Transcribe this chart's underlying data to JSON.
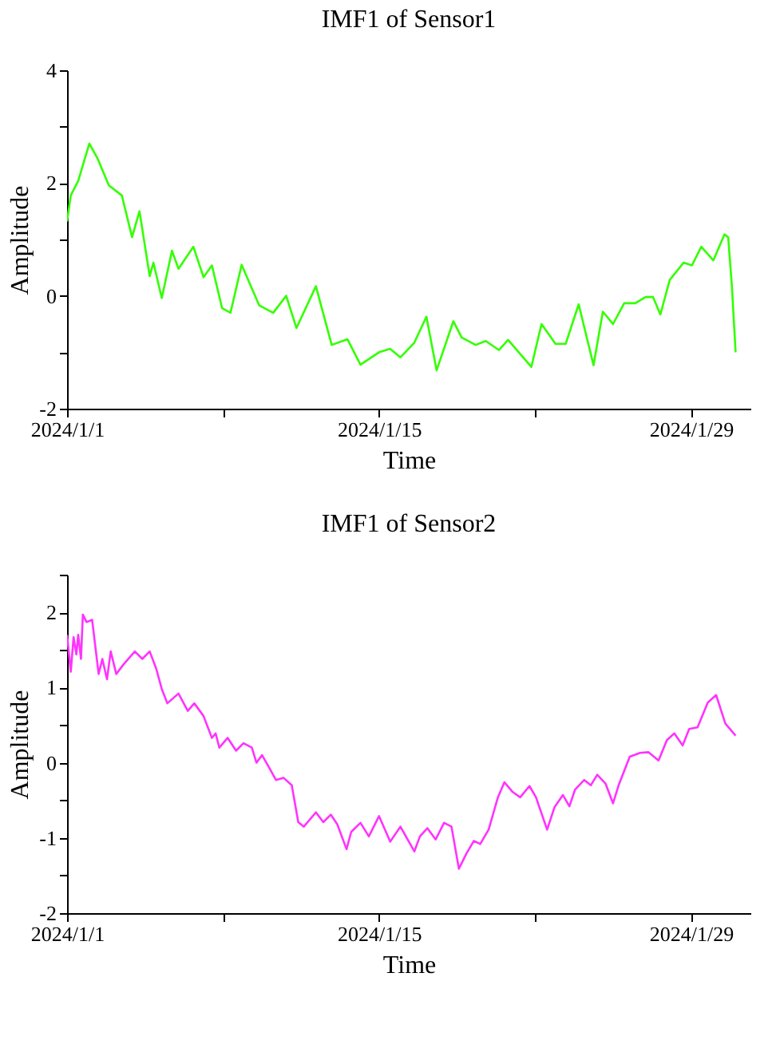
{
  "chart_data": [
    {
      "type": "line",
      "title": "IMF1 of Sensor1",
      "xlabel": "Time",
      "ylabel": "Amplitude",
      "xlim": [
        "2024-01-01",
        "2024-01-31T16:00"
      ],
      "xticks": [
        {
          "value": "2024-01-01",
          "label": "2024/1/1"
        },
        {
          "value": "2024-01-08",
          "label": null
        },
        {
          "value": "2024-01-15",
          "label": "2024/1/15"
        },
        {
          "value": "2024-01-22",
          "label": null
        },
        {
          "value": "2024-01-29",
          "label": "2024/1/29"
        }
      ],
      "ylim": [
        -2,
        4
      ],
      "yticks": [
        -2,
        {
          "value": -1,
          "label": null
        },
        0,
        {
          "value": 1,
          "label": null
        },
        2,
        {
          "value": 3,
          "label": null
        },
        4
      ],
      "grid": false,
      "marker": "none",
      "line_style": "solid",
      "x": [
        "2024-01-01T00:00",
        "2024-01-01T04:00",
        "2024-01-01T12:00",
        "2024-01-02T00:00",
        "2024-01-02T09:00",
        "2024-01-02T21:00",
        "2024-01-03T11:00",
        "2024-01-03T22:00",
        "2024-01-04T06:00",
        "2024-01-04T17:00",
        "2024-01-04T21:00",
        "2024-01-05T06:00",
        "2024-01-05T17:00",
        "2024-01-06T00:00",
        "2024-01-06T16:00",
        "2024-01-07T03:00",
        "2024-01-07T12:00",
        "2024-01-07T23:00",
        "2024-01-08T08:00",
        "2024-01-08T20:00",
        "2024-01-09T15:00",
        "2024-01-10T06:00",
        "2024-01-10T20:00",
        "2024-01-11T07:00",
        "2024-01-12T04:00",
        "2024-01-12T21:00",
        "2024-01-13T14:00",
        "2024-01-14T04:00",
        "2024-01-15T00:00",
        "2024-01-15T12:00",
        "2024-01-15T23:00",
        "2024-01-16T14:00",
        "2024-01-17T03:00",
        "2024-01-17T14:00",
        "2024-01-18T08:00",
        "2024-01-18T17:00",
        "2024-01-19T08:00",
        "2024-01-19T19:00",
        "2024-01-20T09:00",
        "2024-01-20T19:00",
        "2024-01-21T20:00",
        "2024-01-22T07:00",
        "2024-01-22T22:00",
        "2024-01-23T09:00",
        "2024-01-23T23:00",
        "2024-01-24T15:00",
        "2024-01-25T01:00",
        "2024-01-25T12:00",
        "2024-01-26T00:00",
        "2024-01-26T12:00",
        "2024-01-26T23:00",
        "2024-01-27T07:00",
        "2024-01-27T15:00",
        "2024-01-28T01:00",
        "2024-01-28T16:00",
        "2024-01-29T01:00",
        "2024-01-29T11:00",
        "2024-01-30T00:00",
        "2024-01-30T12:00",
        "2024-01-30T16:00",
        "2024-01-30T20:00",
        "2024-01-31T00:00"
      ],
      "series": [
        {
          "color": "#33ff00",
          "values": [
            1.32,
            1.78,
            2.04,
            2.7,
            2.43,
            1.96,
            1.78,
            1.04,
            1.5,
            0.35,
            0.59,
            -0.04,
            0.8,
            0.48,
            0.87,
            0.33,
            0.54,
            -0.22,
            -0.3,
            0.55,
            -0.17,
            -0.3,
            0.0,
            -0.57,
            0.17,
            -0.87,
            -0.77,
            -1.22,
            -1.0,
            -0.94,
            -1.09,
            -0.83,
            -0.37,
            -1.32,
            -0.45,
            -0.74,
            -0.87,
            -0.8,
            -0.96,
            -0.78,
            -1.26,
            -0.5,
            -0.85,
            -0.85,
            -0.15,
            -1.23,
            -0.28,
            -0.5,
            -0.13,
            -0.13,
            -0.02,
            -0.02,
            -0.33,
            0.28,
            0.59,
            0.54,
            0.87,
            0.63,
            1.09,
            1.04,
            0.17,
            -1.0
          ]
        }
      ]
    },
    {
      "type": "line",
      "title": "IMF1 of Sensor2",
      "xlabel": "Time",
      "ylabel": "Amplitude",
      "xlim": [
        "2024-01-01",
        "2024-01-31T16:00"
      ],
      "xticks": [
        {
          "value": "2024-01-01",
          "label": "2024/1/1"
        },
        {
          "value": "2024-01-08",
          "label": null
        },
        {
          "value": "2024-01-15",
          "label": "2024/1/15"
        },
        {
          "value": "2024-01-22",
          "label": null
        },
        {
          "value": "2024-01-29",
          "label": "2024/1/29"
        }
      ],
      "ylim": [
        -2,
        2.5
      ],
      "yticks": [
        -2,
        {
          "value": -1.5,
          "label": null
        },
        -1,
        {
          "value": -0.5,
          "label": null
        },
        0,
        {
          "value": 0.5,
          "label": null
        },
        1,
        {
          "value": 1.5,
          "label": null
        },
        2,
        {
          "value": 2.5,
          "label": null
        }
      ],
      "grid": false,
      "marker": "none",
      "line_style": "solid",
      "x": [
        "2024-01-01T00:00",
        "2024-01-01T04:00",
        "2024-01-01T07:00",
        "2024-01-01T10:00",
        "2024-01-01T12:00",
        "2024-01-01T15:00",
        "2024-01-01T17:00",
        "2024-01-01T21:00",
        "2024-01-02T03:00",
        "2024-01-02T10:00",
        "2024-01-02T14:00",
        "2024-01-02T19:00",
        "2024-01-02T23:00",
        "2024-01-03T05:00",
        "2024-01-03T13:00",
        "2024-01-04T01:00",
        "2024-01-04T09:00",
        "2024-01-04T17:00",
        "2024-01-05T00:00",
        "2024-01-05T06:00",
        "2024-01-05T12:00",
        "2024-01-06T00:00",
        "2024-01-06T10:00",
        "2024-01-06T17:00",
        "2024-01-07T03:00",
        "2024-01-07T12:00",
        "2024-01-07T16:00",
        "2024-01-07T20:00",
        "2024-01-08T05:00",
        "2024-01-08T14:00",
        "2024-01-08T22:00",
        "2024-01-09T07:00",
        "2024-01-09T12:00",
        "2024-01-09T18:00",
        "2024-01-10T00:00",
        "2024-01-10T09:00",
        "2024-01-10T17:00",
        "2024-01-11T02:00",
        "2024-01-11T09:00",
        "2024-01-11T15:00",
        "2024-01-12T04:00",
        "2024-01-12T12:00",
        "2024-01-12T20:00",
        "2024-01-13T03:00",
        "2024-01-13T13:00",
        "2024-01-13T18:00",
        "2024-01-14T04:00",
        "2024-01-14T13:00",
        "2024-01-15T00:00",
        "2024-01-15T12:00",
        "2024-01-15T23:00",
        "2024-01-16T14:00",
        "2024-01-16T20:00",
        "2024-01-17T04:00",
        "2024-01-17T13:00",
        "2024-01-17T22:00",
        "2024-01-18T06:00",
        "2024-01-18T14:00",
        "2024-01-18T22:00",
        "2024-01-19T06:00",
        "2024-01-19T13:00",
        "2024-01-19T22:00",
        "2024-01-20T08:00",
        "2024-01-20T15:00",
        "2024-01-21T00:00",
        "2024-01-21T08:00",
        "2024-01-21T18:00",
        "2024-01-22T01:00",
        "2024-01-22T13:00",
        "2024-01-22T21:00",
        "2024-01-23T06:00",
        "2024-01-23T13:00",
        "2024-01-23T19:00",
        "2024-01-24T05:00",
        "2024-01-24T12:00",
        "2024-01-24T19:00",
        "2024-01-25T04:00",
        "2024-01-25T12:00",
        "2024-01-25T18:00",
        "2024-01-26T06:00",
        "2024-01-26T17:00",
        "2024-01-27T02:00",
        "2024-01-27T13:00",
        "2024-01-27T22:00",
        "2024-01-28T06:00",
        "2024-01-28T15:00",
        "2024-01-28T22:00",
        "2024-01-29T07:00",
        "2024-01-29T18:00",
        "2024-01-30T03:00",
        "2024-01-30T13:00",
        "2024-01-31T00:00"
      ],
      "series": [
        {
          "color": "#ff33ff",
          "values": [
            1.7,
            1.21,
            1.67,
            1.44,
            1.7,
            1.38,
            1.97,
            1.87,
            1.9,
            1.18,
            1.38,
            1.11,
            1.48,
            1.18,
            1.31,
            1.48,
            1.38,
            1.48,
            1.25,
            0.98,
            0.79,
            0.92,
            0.69,
            0.79,
            0.62,
            0.33,
            0.39,
            0.2,
            0.33,
            0.16,
            0.26,
            0.2,
            0.0,
            0.1,
            -0.03,
            -0.23,
            -0.2,
            -0.3,
            -0.79,
            -0.85,
            -0.66,
            -0.79,
            -0.69,
            -0.82,
            -1.15,
            -0.92,
            -0.8,
            -0.98,
            -0.71,
            -1.05,
            -0.85,
            -1.18,
            -0.98,
            -0.87,
            -1.02,
            -0.8,
            -0.85,
            -1.41,
            -1.21,
            -1.04,
            -1.08,
            -0.89,
            -0.46,
            -0.26,
            -0.39,
            -0.46,
            -0.31,
            -0.46,
            -0.89,
            -0.59,
            -0.43,
            -0.58,
            -0.36,
            -0.23,
            -0.3,
            -0.16,
            -0.28,
            -0.54,
            -0.3,
            0.08,
            0.13,
            0.14,
            0.03,
            0.3,
            0.39,
            0.23,
            0.45,
            0.47,
            0.8,
            0.9,
            0.52,
            0.36
          ]
        }
      ]
    }
  ]
}
